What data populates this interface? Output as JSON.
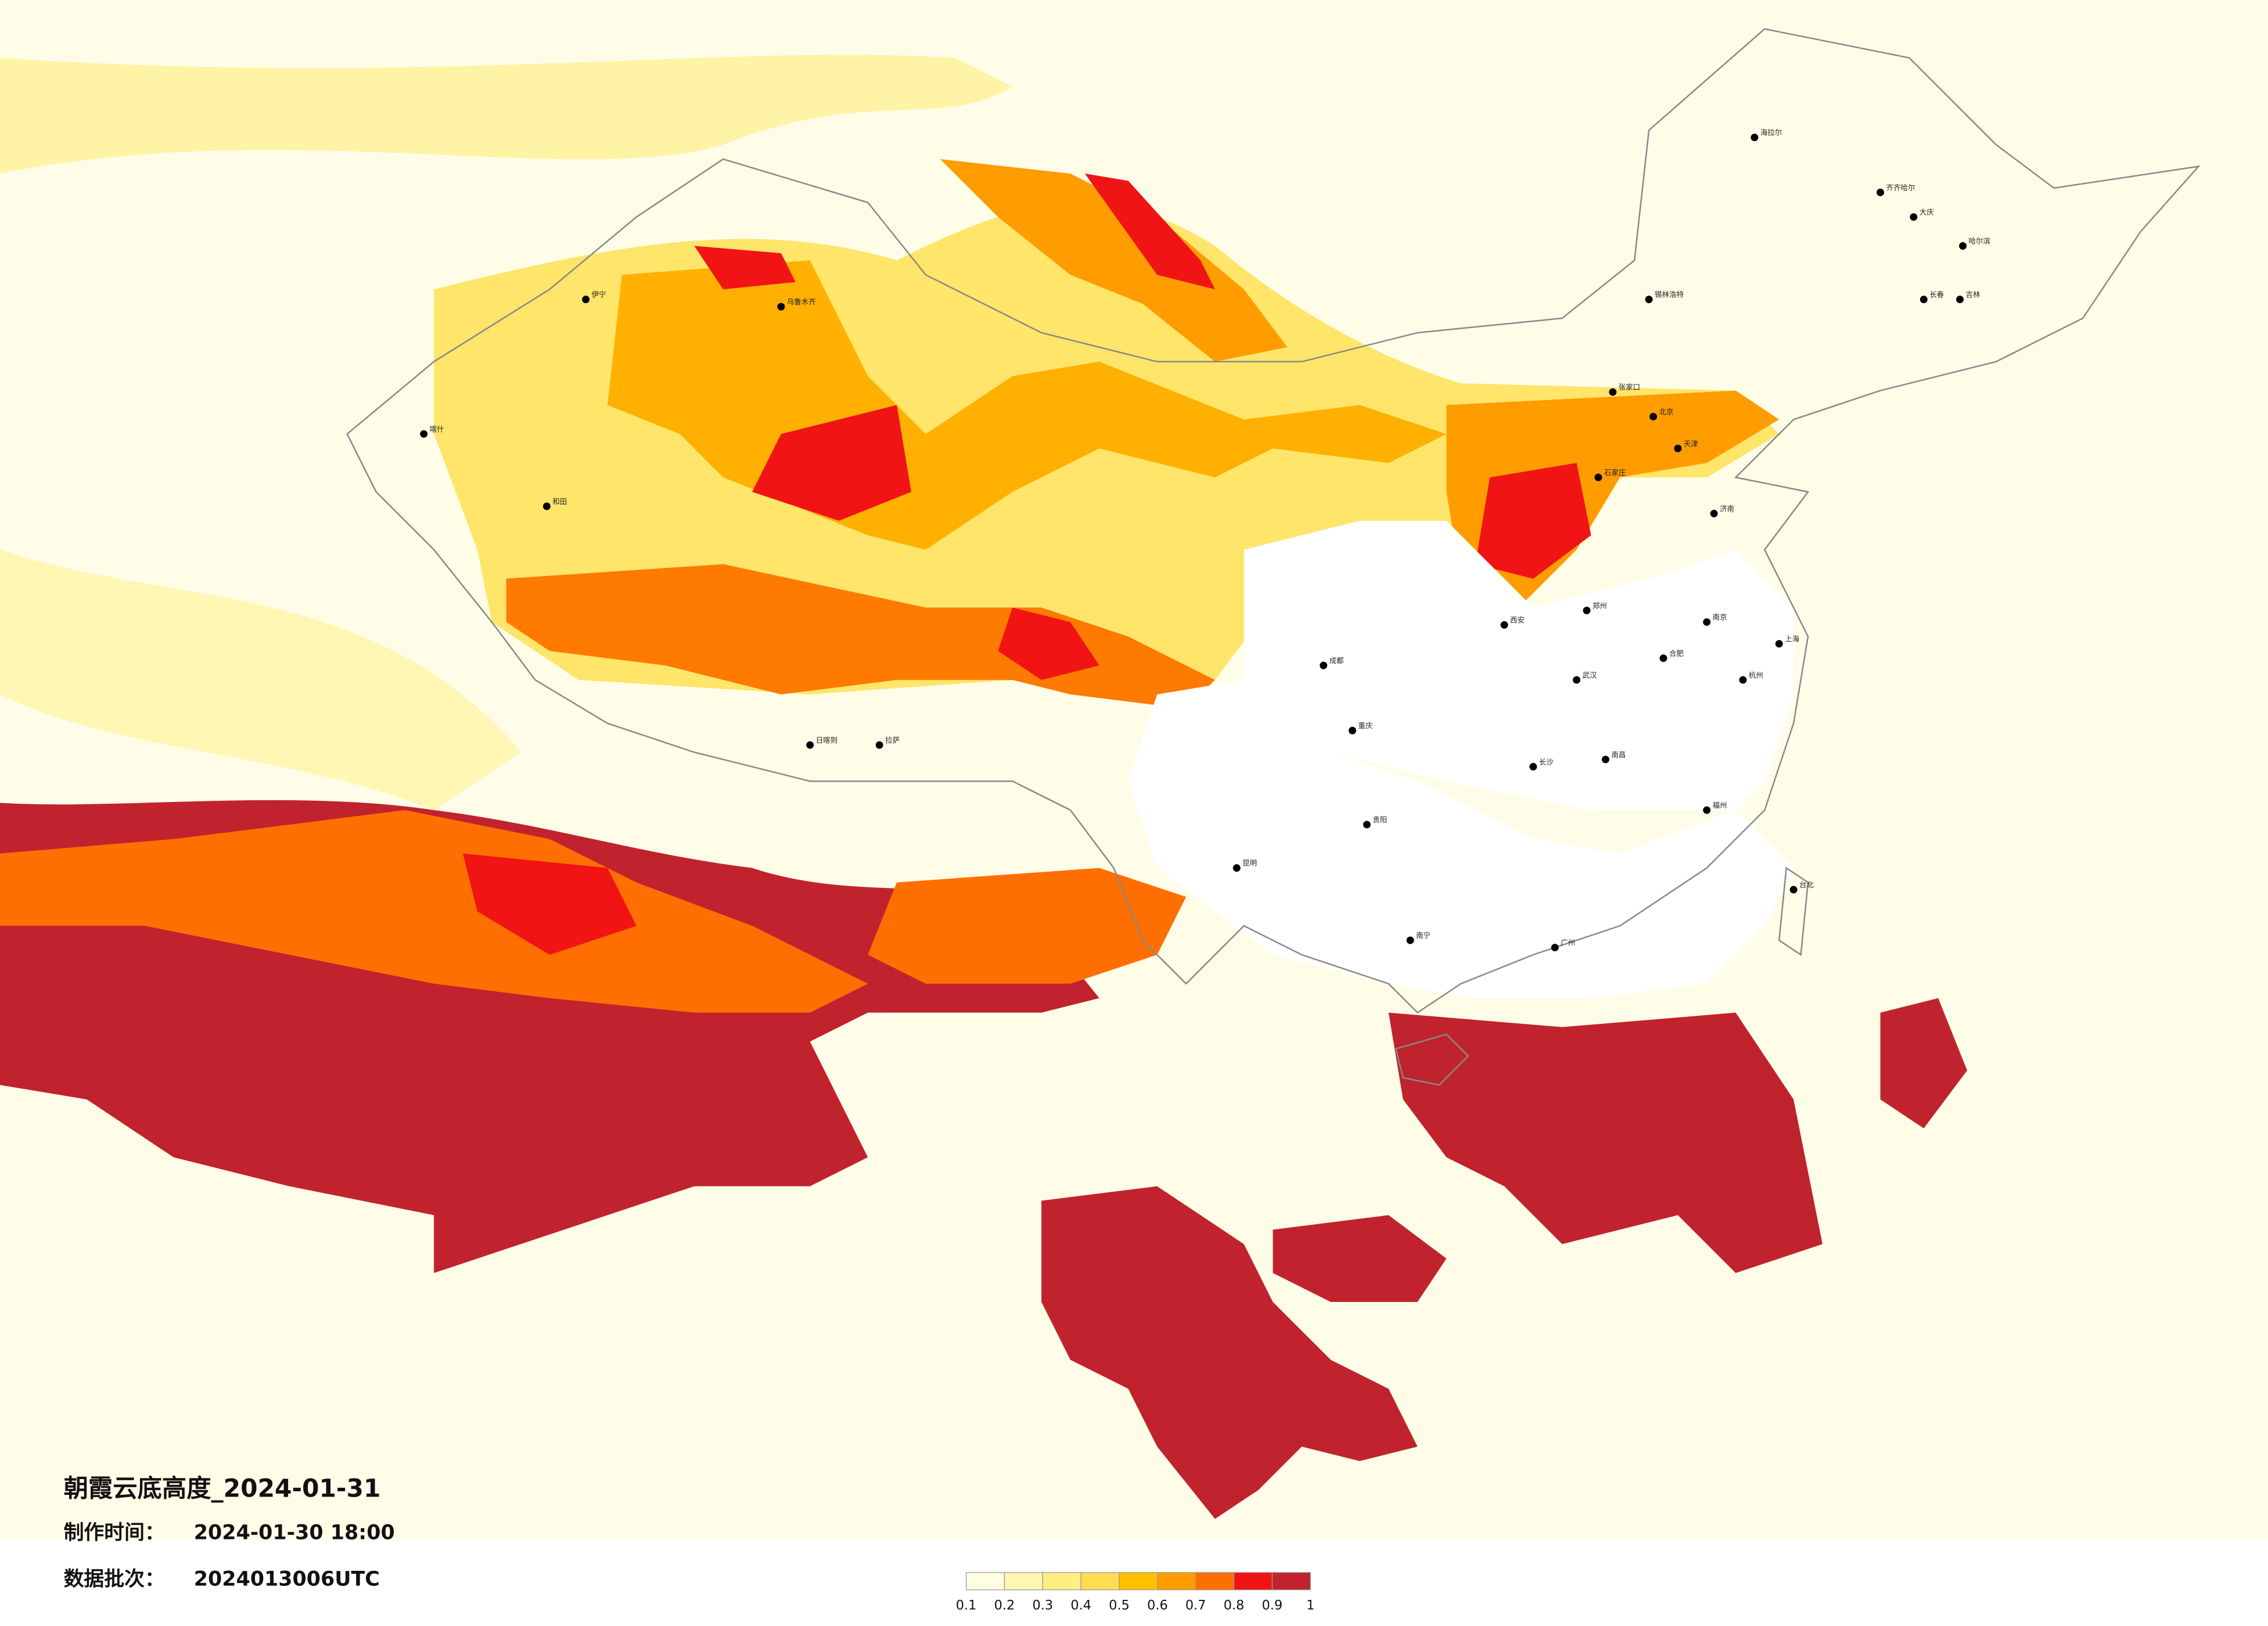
{
  "title": "朝霞云底高度_2024-01-31",
  "info": [
    {
      "label": "制作时间：",
      "value": "2024-01-30 18:00"
    },
    {
      "label": "数据批次：",
      "value": "2024013006UTC"
    }
  ],
  "colorbar": {
    "ticks": [
      0.1,
      0.2,
      0.3,
      0.4,
      0.5,
      0.6,
      0.7,
      0.8,
      0.9,
      1
    ],
    "colors": [
      "#fffde2",
      "#fff6b4",
      "#ffee82",
      "#ffdc50",
      "#ffc000",
      "#ff9c00",
      "#ff6e00",
      "#f01414",
      "#c0232d"
    ]
  },
  "cities": [
    "海拉尔",
    "齐齐哈尔",
    "大庆",
    "哈尔滨",
    "长春",
    "吉林",
    "锡林浩特",
    "张家口",
    "北京",
    "天津",
    "石家庄",
    "济南",
    "郑州",
    "西安",
    "乌鲁木齐",
    "伊宁",
    "喀什",
    "和田",
    "日喀则",
    "拉萨",
    "成都",
    "重庆",
    "贵阳",
    "昆明",
    "南宁",
    "广州",
    "台北",
    "上海",
    "杭州",
    "武汉",
    "长沙",
    "南昌",
    "福州",
    "合肥",
    "南京"
  ]
}
